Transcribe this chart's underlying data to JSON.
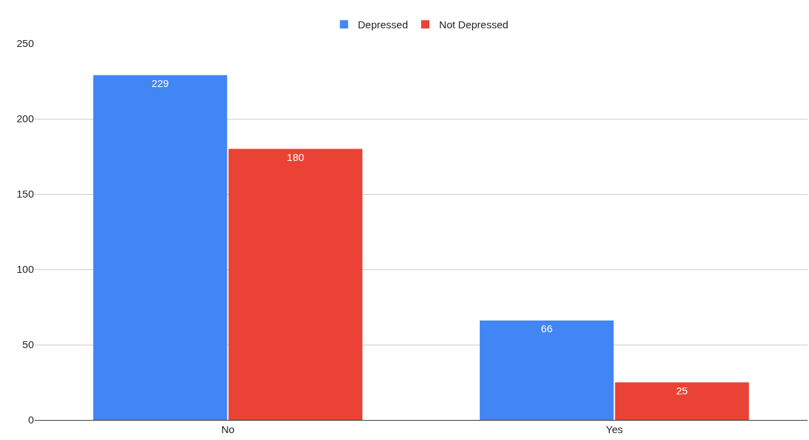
{
  "chart_data": {
    "type": "bar",
    "categories": [
      "No",
      "Yes"
    ],
    "series": [
      {
        "name": "Depressed",
        "color": "#4285f4",
        "values": [
          229,
          66
        ]
      },
      {
        "name": "Not Depressed",
        "color": "#ea4335",
        "values": [
          180,
          25
        ]
      }
    ],
    "ylim": [
      0,
      250
    ],
    "yticks": [
      0,
      50,
      100,
      150,
      200,
      250
    ],
    "grid": "y",
    "legend": "top",
    "data_labels": true
  }
}
